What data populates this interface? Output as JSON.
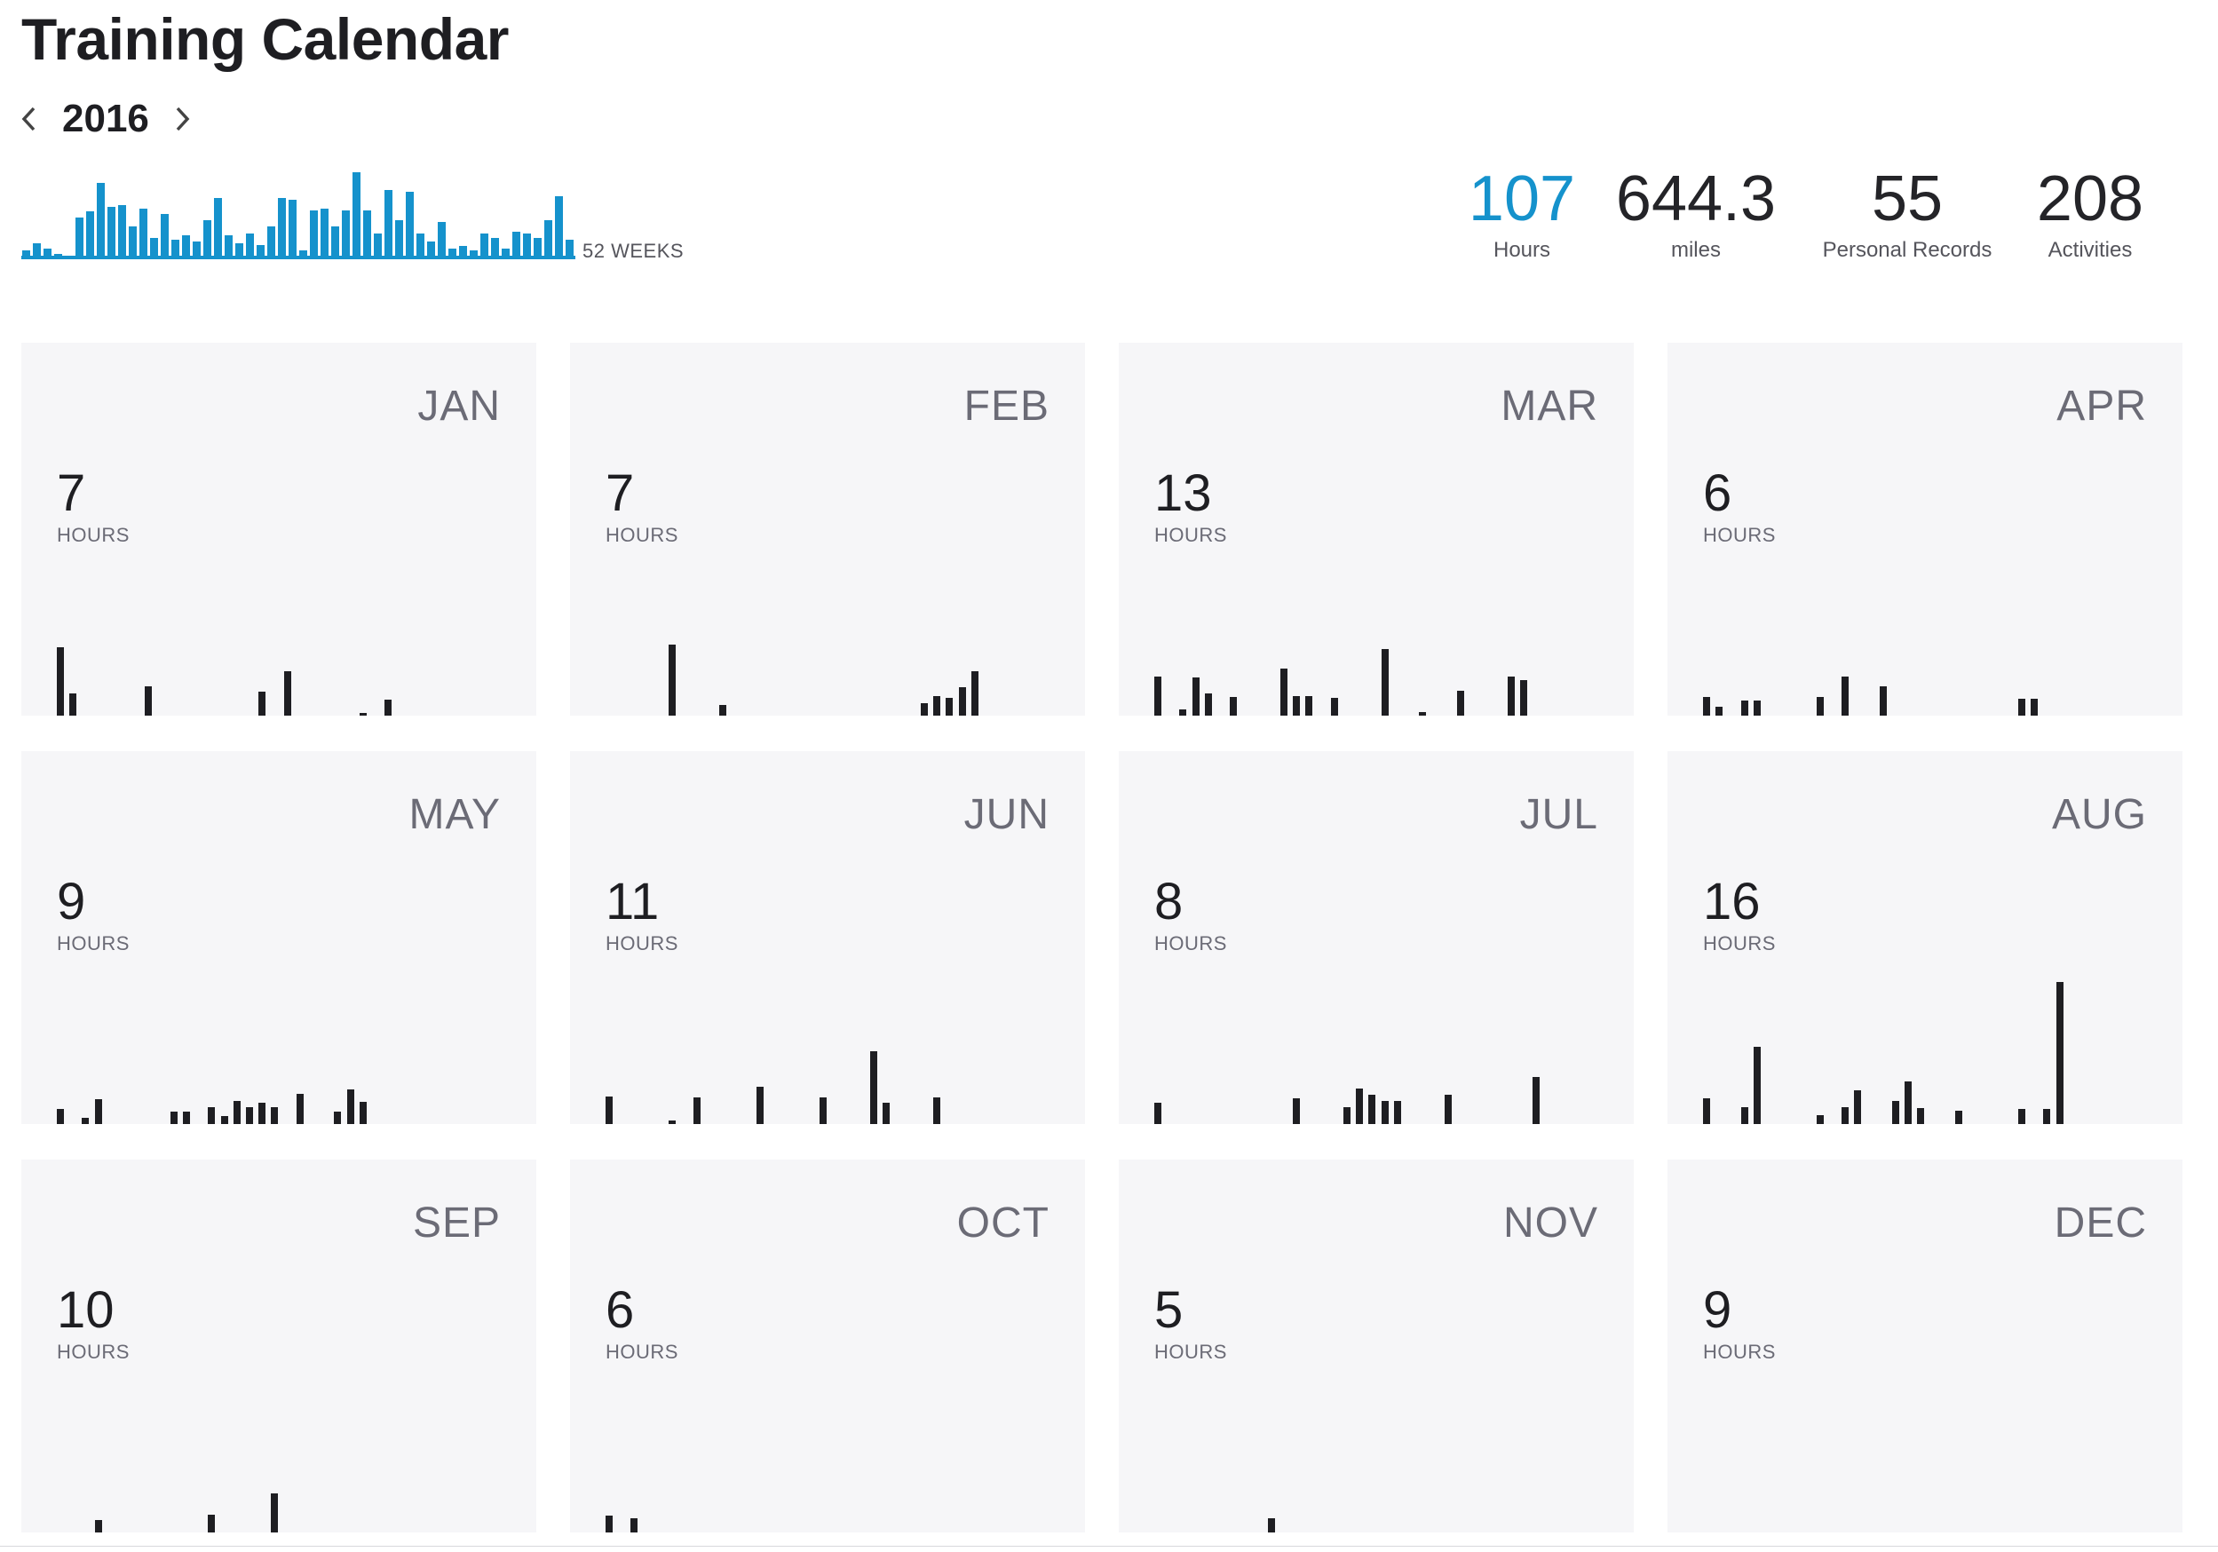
{
  "page": {
    "title": "Training Calendar"
  },
  "year_nav": {
    "year": "2016",
    "prev_icon": "chevron-left-icon",
    "next_icon": "chevron-right-icon"
  },
  "weekly_chart": {
    "label": "52 WEEKS",
    "color": "#1592cc",
    "values": [
      10,
      18,
      12,
      6,
      0,
      48,
      55,
      88,
      60,
      62,
      38,
      58,
      25,
      52,
      22,
      28,
      20,
      45,
      70,
      28,
      18,
      30,
      16,
      38,
      70,
      68,
      10,
      56,
      58,
      38,
      56,
      100,
      56,
      30,
      80,
      45,
      78,
      30,
      20,
      43,
      12,
      15,
      10,
      30,
      25,
      12,
      32,
      30,
      25,
      45,
      72,
      22
    ]
  },
  "stats": [
    {
      "value": "107",
      "label": "Hours",
      "accent": true
    },
    {
      "value": "644.3",
      "label": "miles",
      "accent": false
    },
    {
      "value": "55",
      "label": "Personal Records",
      "accent": false
    },
    {
      "value": "208",
      "label": "Activities",
      "accent": false
    }
  ],
  "months": [
    {
      "name": "JAN",
      "hours": "7",
      "unit": "HOURS",
      "days": [
        77,
        25,
        0,
        0,
        0,
        0,
        0,
        33,
        0,
        0,
        0,
        0,
        0,
        0,
        0,
        0,
        27,
        0,
        50,
        0,
        0,
        0,
        0,
        0,
        3,
        0,
        18,
        0,
        0,
        0,
        0
      ]
    },
    {
      "name": "FEB",
      "hours": "7",
      "unit": "HOURS",
      "days": [
        0,
        0,
        0,
        0,
        0,
        80,
        0,
        0,
        0,
        12,
        0,
        0,
        0,
        0,
        0,
        0,
        0,
        0,
        0,
        0,
        0,
        0,
        0,
        0,
        0,
        14,
        22,
        20,
        32,
        50,
        0
      ]
    },
    {
      "name": "MAR",
      "hours": "13",
      "unit": "HOURS",
      "days": [
        44,
        0,
        7,
        43,
        25,
        0,
        21,
        0,
        0,
        0,
        53,
        22,
        22,
        0,
        20,
        0,
        0,
        0,
        75,
        0,
        0,
        4,
        0,
        0,
        28,
        0,
        0,
        0,
        44,
        40,
        0
      ]
    },
    {
      "name": "APR",
      "hours": "6",
      "unit": "HOURS",
      "days": [
        21,
        10,
        0,
        17,
        17,
        0,
        0,
        0,
        0,
        21,
        0,
        44,
        0,
        0,
        33,
        0,
        0,
        0,
        0,
        0,
        0,
        0,
        0,
        0,
        0,
        19,
        19,
        0,
        0,
        0,
        0
      ]
    },
    {
      "name": "MAY",
      "hours": "9",
      "unit": "HOURS",
      "days": [
        17,
        0,
        7,
        28,
        0,
        0,
        0,
        0,
        0,
        14,
        14,
        0,
        19,
        9,
        26,
        19,
        24,
        19,
        0,
        34,
        0,
        0,
        14,
        39,
        25,
        0,
        0,
        0,
        0,
        0,
        0
      ]
    },
    {
      "name": "JUN",
      "hours": "11",
      "unit": "HOURS",
      "days": [
        31,
        0,
        0,
        0,
        0,
        4,
        0,
        30,
        0,
        0,
        0,
        0,
        42,
        0,
        0,
        0,
        0,
        30,
        0,
        0,
        0,
        82,
        24,
        0,
        0,
        0,
        30,
        0,
        0,
        0,
        0
      ]
    },
    {
      "name": "JUL",
      "hours": "8",
      "unit": "HOURS",
      "days": [
        24,
        0,
        0,
        0,
        0,
        0,
        0,
        0,
        0,
        0,
        0,
        29,
        0,
        0,
        0,
        19,
        40,
        33,
        26,
        26,
        0,
        0,
        0,
        33,
        0,
        0,
        0,
        0,
        0,
        0,
        53
      ]
    },
    {
      "name": "AUG",
      "hours": "16",
      "unit": "HOURS",
      "days": [
        29,
        0,
        0,
        19,
        87,
        0,
        0,
        0,
        0,
        10,
        0,
        19,
        38,
        0,
        0,
        26,
        48,
        18,
        0,
        0,
        15,
        0,
        0,
        0,
        0,
        17,
        0,
        17,
        160,
        0,
        0
      ]
    },
    {
      "name": "SEP",
      "hours": "10",
      "unit": "HOURS",
      "days": [
        0,
        0,
        0,
        14,
        0,
        0,
        0,
        0,
        0,
        0,
        0,
        0,
        20,
        0,
        0,
        0,
        0,
        44,
        0,
        0,
        0,
        0,
        0,
        0,
        0,
        0,
        0,
        0,
        0,
        0,
        0
      ]
    },
    {
      "name": "OCT",
      "hours": "6",
      "unit": "HOURS",
      "days": [
        19,
        0,
        16,
        0,
        0,
        0,
        0,
        0,
        0,
        0,
        0,
        0,
        0,
        0,
        0,
        0,
        0,
        0,
        0,
        0,
        0,
        0,
        0,
        0,
        0,
        0,
        0,
        0,
        0,
        0,
        0
      ]
    },
    {
      "name": "NOV",
      "hours": "5",
      "unit": "HOURS",
      "days": [
        0,
        0,
        0,
        0,
        0,
        0,
        0,
        0,
        0,
        16,
        0,
        0,
        0,
        0,
        0,
        0,
        0,
        0,
        0,
        0,
        0,
        0,
        0,
        0,
        0,
        0,
        0,
        0,
        0,
        0,
        0
      ]
    },
    {
      "name": "DEC",
      "hours": "9",
      "unit": "HOURS",
      "days": [
        0,
        0,
        0,
        0,
        0,
        0,
        0,
        0,
        0,
        0,
        0,
        0,
        0,
        0,
        0,
        0,
        0,
        0,
        0,
        0,
        0,
        0,
        0,
        0,
        0,
        0,
        0,
        0,
        0,
        0,
        0
      ]
    }
  ]
}
